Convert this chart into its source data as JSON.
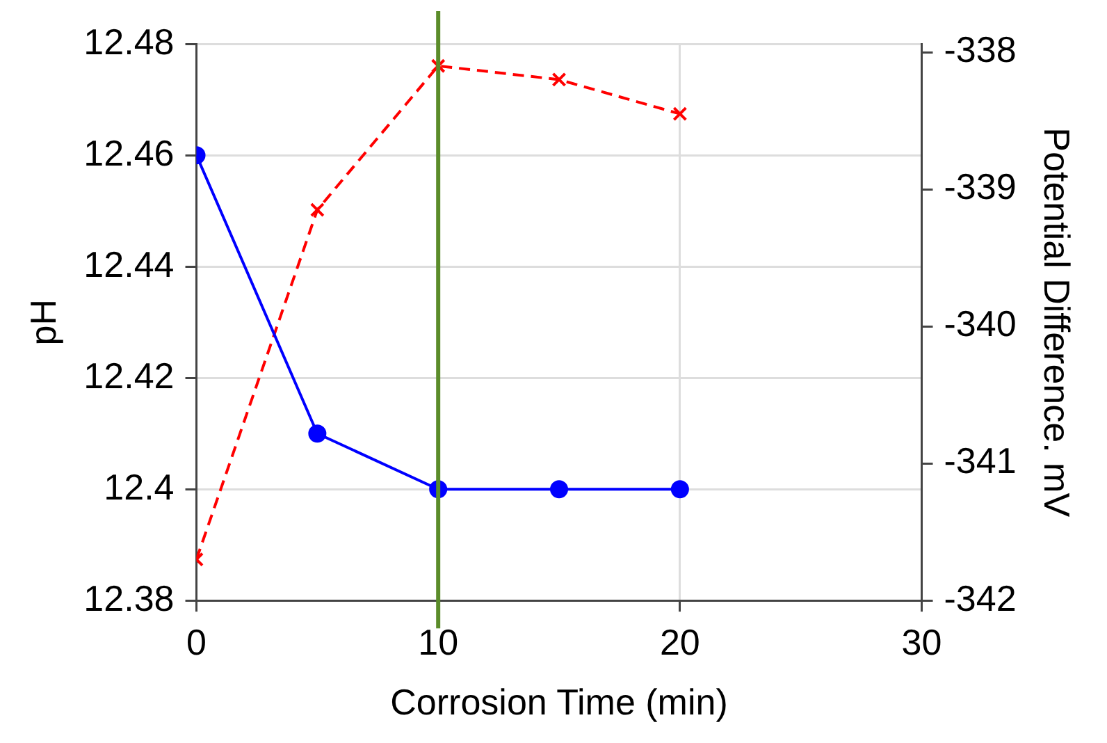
{
  "chart_data": {
    "type": "line",
    "xlabel": "Corrosion Time (min)",
    "ylabel": "pH",
    "y2label": "Potential Difference. mV",
    "x": [
      0,
      5,
      10,
      15,
      20
    ],
    "series": [
      {
        "color": "#0000ff",
        "values": [
          12.46,
          12.41,
          12.4,
          12.4,
          12.4
        ],
        "marker": "circle",
        "line_style": "solid"
      },
      {
        "color": "#ff0000",
        "values": [
          -341.7,
          -339.15,
          -338.1,
          -338.2,
          -338.45
        ],
        "axis": "y2",
        "marker": "cross",
        "line_style": "dashed"
      }
    ],
    "xlim": [
      0,
      30
    ],
    "xticks": [
      0,
      10,
      20,
      30
    ],
    "ylim": [
      12.38,
      12.48
    ],
    "yticks": [
      {
        "value": 12.38,
        "label": "12.38"
      },
      {
        "value": 12.4,
        "label": "12.4"
      },
      {
        "value": 12.42,
        "label": "12.42"
      },
      {
        "value": 12.44,
        "label": "12.44"
      },
      {
        "value": 12.46,
        "label": "12.46"
      },
      {
        "value": 12.48,
        "label": "12.48"
      }
    ],
    "y2lim": [
      -342,
      -337.94
    ],
    "y2ticks": [
      -342,
      -341,
      -340,
      -339,
      -338
    ],
    "ref_lines": [
      {
        "axis": "x",
        "value": 10,
        "color": "#5b8c2a"
      }
    ],
    "grid": true,
    "legend": false
  }
}
